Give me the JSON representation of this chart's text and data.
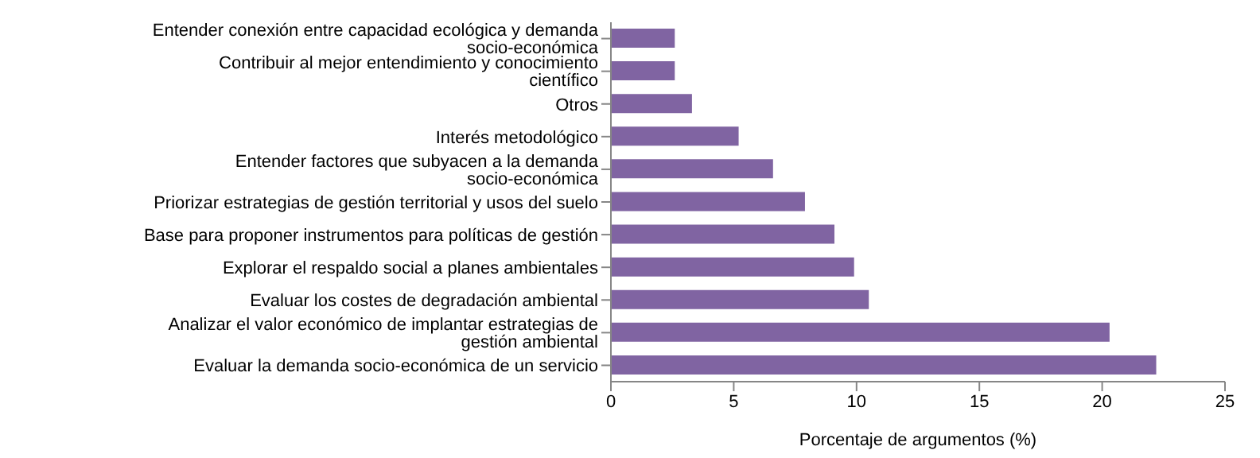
{
  "chart_data": {
    "type": "bar",
    "orientation": "horizontal",
    "xlabel": "Porcentaje de argumentos (%)",
    "categories": [
      "Entender conexión entre capacidad ecológica y demanda socio-económica",
      "Contribuir al mejor entendimiento y conocimiento científico",
      "Otros",
      "Interés metodológico",
      "Entender factores que subyacen a la demanda socio-económica",
      "Priorizar estrategias de gestión territorial y usos del suelo",
      "Base para proponer instrumentos para políticas de gestión",
      "Explorar el respaldo social a planes ambientales",
      "Evaluar los costes de degradación ambiental",
      "Analizar el valor económico de implantar estrategias de gestión ambiental",
      "Evaluar la demanda socio-económica de un servicio"
    ],
    "values": [
      2.6,
      2.6,
      3.3,
      5.2,
      6.6,
      7.9,
      9.1,
      9.9,
      10.5,
      20.3,
      22.2
    ],
    "color": "#8064a2",
    "xlim": [
      0,
      25
    ],
    "xticks": [
      0,
      5,
      10,
      15,
      20,
      25
    ],
    "grid": false,
    "legend": false
  }
}
